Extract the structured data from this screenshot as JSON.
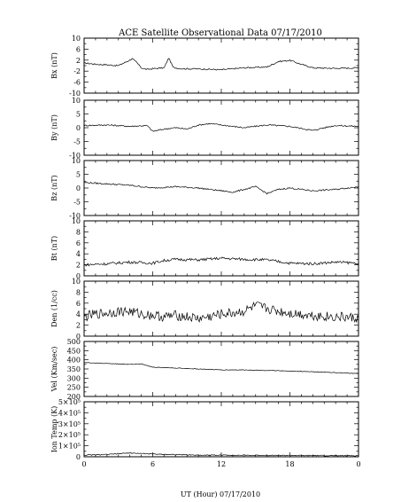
{
  "chart_data": {
    "type": "line",
    "title": "ACE Satellite Observational Data   07/17/2010",
    "xlabel": "UT (Hour)   07/17/2010",
    "x_tick_labels": [
      "0",
      "6",
      "12",
      "18",
      "0"
    ],
    "xlim": [
      0,
      24
    ],
    "panels": [
      {
        "ylabel": "Bx (nT)",
        "ylim": [
          -10,
          10
        ],
        "yticks": [
          "10",
          "6",
          "2",
          "-2",
          "-6",
          "-10"
        ],
        "x": [
          0,
          1,
          2,
          3,
          3.9,
          4.2,
          4.6,
          5,
          5.5,
          6,
          7,
          7.4,
          7.8,
          8.5,
          10,
          12,
          14,
          16,
          17,
          18,
          19,
          20,
          22,
          24
        ],
        "values": [
          1,
          0.5,
          0.3,
          0,
          1.8,
          2.5,
          1.2,
          -0.8,
          -1.4,
          -1.1,
          -0.8,
          2.8,
          -0.7,
          -1.1,
          -1.2,
          -1.5,
          -0.8,
          -0.5,
          1.5,
          1.9,
          0.5,
          -0.8,
          -1.0,
          -0.8
        ]
      },
      {
        "ylabel": "By (nT)",
        "ylim": [
          -10,
          10
        ],
        "yticks": [
          "10",
          "5",
          "0",
          "-5",
          "-10"
        ],
        "x": [
          0,
          2,
          4,
          5.5,
          6,
          7,
          8,
          9,
          10,
          11,
          12,
          14,
          16,
          18,
          20,
          21,
          22,
          24
        ],
        "values": [
          0.8,
          1,
          0.5,
          0.8,
          -1.3,
          -0.5,
          0,
          -0.5,
          1,
          1.5,
          1,
          0,
          1,
          0.5,
          -1,
          0,
          0.8,
          0.5
        ]
      },
      {
        "ylabel": "Bz (nT)",
        "ylim": [
          -10,
          10
        ],
        "yticks": [
          "10",
          "5",
          "0",
          "-5",
          "-10"
        ],
        "x": [
          0,
          2,
          4,
          5,
          6,
          8,
          10,
          12,
          13,
          14,
          15,
          16,
          17,
          18,
          20,
          22,
          24
        ],
        "values": [
          2,
          1.5,
          1,
          0.5,
          0,
          0.5,
          0,
          -1,
          -1.5,
          -0.5,
          0.5,
          -2,
          -0.5,
          0,
          -1,
          -0.5,
          0.5
        ]
      },
      {
        "ylabel": "Bt (nT)",
        "ylim": [
          0,
          10
        ],
        "yticks": [
          "10",
          "8",
          "6",
          "4",
          "2",
          "0"
        ],
        "x": [
          0,
          2,
          4,
          6,
          7,
          8,
          10,
          12,
          14,
          16,
          18,
          20,
          22,
          24
        ],
        "values": [
          2.0,
          2.2,
          2.5,
          2.3,
          2.8,
          3.0,
          2.9,
          3.2,
          3.0,
          2.9,
          2.3,
          2.2,
          2.5,
          2.3
        ]
      },
      {
        "ylabel": "Den (1/cc)",
        "ylim": [
          0,
          10
        ],
        "yticks": [
          "10",
          "8",
          "6",
          "4",
          "2",
          "0"
        ],
        "x": [
          0,
          1,
          2,
          3,
          4,
          5,
          6,
          7,
          8,
          9,
          10,
          11,
          12,
          13,
          14,
          15,
          16,
          17,
          18,
          19,
          20,
          21,
          22,
          23,
          24
        ],
        "values": [
          3.5,
          4,
          4.2,
          4.5,
          4.5,
          4,
          3.8,
          3.5,
          3.8,
          3.5,
          3.2,
          3.5,
          4,
          4.2,
          4.5,
          5.5,
          5,
          4.5,
          4.2,
          4,
          3.8,
          3.6,
          3.5,
          3.4,
          3.2
        ]
      },
      {
        "ylabel": "Vel (Km/sec)",
        "ylim": [
          200,
          500
        ],
        "yticks": [
          "500",
          "450",
          "400",
          "350",
          "300",
          "250",
          "200"
        ],
        "x": [
          0,
          2,
          4,
          5,
          6,
          8,
          10,
          12,
          14,
          16,
          18,
          20,
          22,
          24
        ],
        "values": [
          385,
          380,
          375,
          378,
          360,
          355,
          350,
          345,
          345,
          342,
          338,
          335,
          330,
          325
        ]
      },
      {
        "ylabel": "Ion Temp (K)",
        "ylim": [
          0,
          500000
        ],
        "yticks": [
          "5×10⁵",
          "4×10⁵",
          "3×10⁵",
          "2×10⁵",
          "1×10⁵",
          "0"
        ],
        "x": [
          0,
          2,
          4,
          6,
          8,
          10,
          12,
          14,
          16,
          18,
          20,
          22,
          24
        ],
        "values": [
          15000,
          20000,
          35000,
          25000,
          20000,
          15000,
          15000,
          14000,
          13000,
          12000,
          11000,
          10000,
          10000
        ]
      }
    ]
  }
}
